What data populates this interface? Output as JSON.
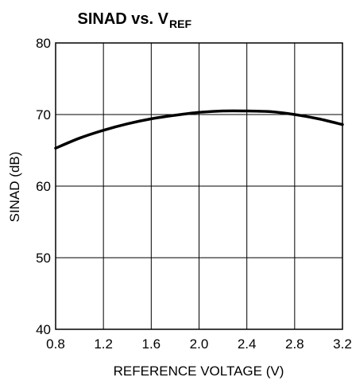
{
  "chart_data": {
    "type": "line",
    "title": "SINAD vs. V",
    "title_subscript": "REF",
    "xlabel": "REFERENCE VOLTAGE (V)",
    "ylabel": "SINAD (dB)",
    "xlim": [
      0.8,
      3.2
    ],
    "ylim": [
      40,
      80
    ],
    "x_ticks": [
      "0.8",
      "1.2",
      "1.6",
      "2.0",
      "2.4",
      "2.8",
      "3.2"
    ],
    "y_ticks": [
      "40",
      "50",
      "60",
      "70",
      "80"
    ],
    "grid": true,
    "series": [
      {
        "x": [
          0.8,
          1.0,
          1.2,
          1.4,
          1.6,
          1.8,
          2.0,
          2.2,
          2.4,
          2.6,
          2.8,
          3.0,
          3.2
        ],
        "y": [
          65.3,
          66.7,
          67.8,
          68.7,
          69.4,
          69.9,
          70.3,
          70.5,
          70.5,
          70.4,
          70.0,
          69.4,
          68.6
        ]
      }
    ]
  }
}
